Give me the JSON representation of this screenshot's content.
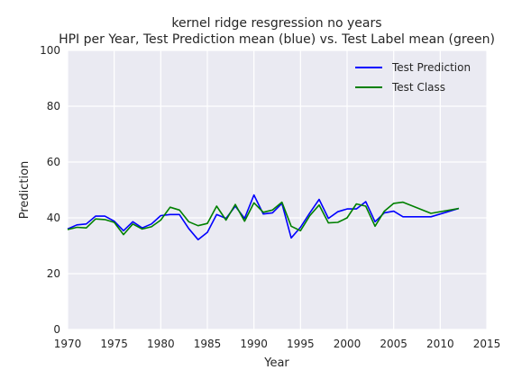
{
  "chart_data": {
    "type": "line",
    "title": "kernel ridge resgression no years",
    "subtitle": "HPI per Year, Test Prediction mean (blue) vs. Test Label mean (green)",
    "xlabel": "Year",
    "ylabel": "Prediction",
    "xlim": [
      1970,
      2015
    ],
    "ylim": [
      0,
      100
    ],
    "xticks": [
      1970,
      1975,
      1980,
      1985,
      1990,
      1995,
      2000,
      2005,
      2010,
      2015
    ],
    "yticks": [
      0,
      20,
      40,
      60,
      80,
      100
    ],
    "grid": true,
    "legend_position": "top-right",
    "series": [
      {
        "name": "Test Prediction",
        "color": "#0000ff",
        "x": [
          1970,
          1971,
          1972,
          1973,
          1974,
          1975,
          1976,
          1977,
          1978,
          1979,
          1980,
          1981,
          1982,
          1983,
          1984,
          1985,
          1986,
          1987,
          1988,
          1989,
          1990,
          1991,
          1992,
          1993,
          1994,
          1995,
          1996,
          1997,
          1998,
          1999,
          2000,
          2001,
          2002,
          2003,
          2004,
          2005,
          2006,
          2009,
          2012
        ],
        "y": [
          36,
          37.5,
          37.8,
          40.6,
          40.6,
          38.8,
          35.4,
          38.6,
          36.4,
          37.8,
          40.8,
          41.2,
          41.2,
          36.2,
          32.2,
          34.8,
          41.2,
          39.8,
          44.2,
          39.8,
          48.2,
          41.4,
          41.8,
          45.2,
          32.8,
          36.6,
          41.8,
          46.6,
          39.8,
          42.2,
          43.2,
          43.2,
          45.8,
          38.6,
          41.8,
          42.4,
          40.4,
          40.4,
          43.4
        ]
      },
      {
        "name": "Test Class",
        "color": "#008000",
        "x": [
          1970,
          1971,
          1972,
          1973,
          1974,
          1975,
          1976,
          1977,
          1978,
          1979,
          1980,
          1981,
          1982,
          1983,
          1984,
          1985,
          1986,
          1987,
          1988,
          1989,
          1990,
          1991,
          1992,
          1993,
          1994,
          1995,
          1996,
          1997,
          1998,
          1999,
          2000,
          2001,
          2002,
          2003,
          2004,
          2005,
          2006,
          2009,
          2012
        ],
        "y": [
          35.8,
          36.6,
          36.4,
          39.6,
          39.4,
          38.4,
          34.0,
          37.8,
          36.0,
          36.8,
          39.2,
          43.8,
          42.8,
          38.6,
          37.2,
          38.0,
          44.2,
          39.2,
          44.8,
          38.8,
          45.4,
          42.0,
          42.8,
          45.6,
          37.0,
          35.4,
          40.8,
          44.6,
          38.2,
          38.4,
          40.0,
          45.0,
          44.2,
          37.0,
          42.4,
          45.2,
          45.6,
          41.6,
          43.4
        ]
      }
    ]
  }
}
